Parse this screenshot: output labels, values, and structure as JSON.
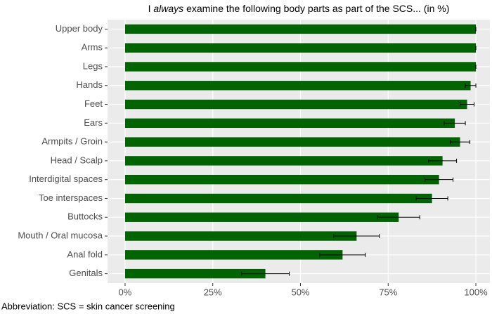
{
  "chart_data": {
    "type": "bar",
    "orientation": "horizontal",
    "title_parts": [
      "I ",
      "always",
      " examine the following body parts as part of the SCS... (in %)"
    ],
    "caption": "Abbreviation: SCS = skin cancer screening",
    "categories": [
      "Upper body",
      "Arms",
      "Legs",
      "Hands",
      "Feet",
      "Ears",
      "Armpits / Groin",
      "Head / Scalp",
      "Interdigital spaces",
      "Toe interspaces",
      "Buttocks",
      "Mouth / Oral mucosa",
      "Anal fold",
      "Genitals"
    ],
    "values": [
      100,
      100,
      100,
      98.5,
      97.5,
      94,
      95.5,
      90.5,
      89.5,
      87.5,
      78,
      66,
      62,
      40
    ],
    "errors": [
      0,
      0,
      0,
      1.5,
      2,
      3,
      2.8,
      4,
      4,
      4.5,
      6,
      6.5,
      6.5,
      6.8
    ],
    "color": "#006400",
    "xlim": [
      -5,
      104
    ],
    "xticks": [
      {
        "value": 0,
        "label": "0%"
      },
      {
        "value": 25,
        "label": "25%"
      },
      {
        "value": 50,
        "label": "50%"
      },
      {
        "value": 75,
        "label": "75%"
      },
      {
        "value": 100,
        "label": "100%"
      }
    ],
    "grid": true
  }
}
